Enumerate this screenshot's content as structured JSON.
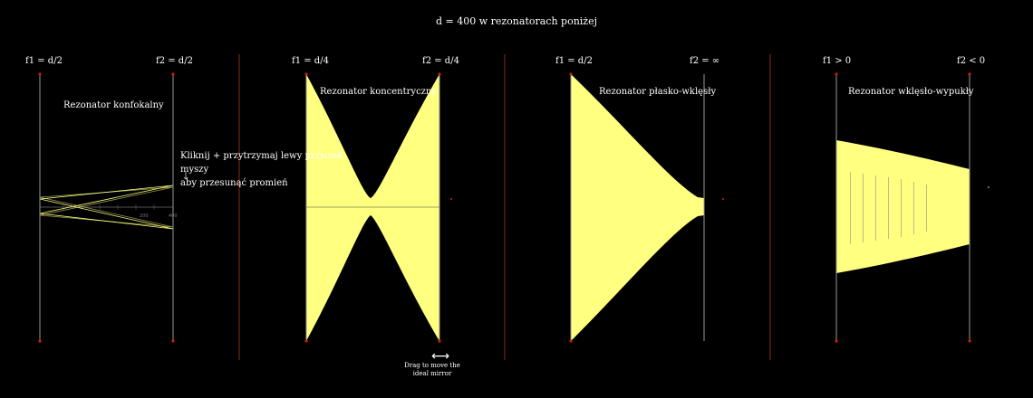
{
  "header": {
    "title": "d = 400 w rezonatorach poniżej"
  },
  "panels": [
    {
      "left_label": "f1 = d/2",
      "right_label": "f2 = d/2",
      "title": "Rezonator konfokalny"
    },
    {
      "left_label": "f1 = d/4",
      "right_label": "f2 = d/4",
      "title": "Rezonator koncentryczny"
    },
    {
      "left_label": "f1 = d/2",
      "right_label": "f2 = ∞",
      "title": "Rezonator płasko-wklęsły"
    },
    {
      "left_label": "f1 > 0",
      "right_label": "f2 < 0",
      "title": "Rezonator wklęsło-wypukły"
    }
  ],
  "hint": {
    "line1": "Kliknij + przytrzymaj lewy przycisk myszy",
    "line2": "aby przesunąć promień"
  },
  "drag_hint": {
    "text": "Drag to move the ideal mirror",
    "icon": "double-arrow-icon"
  },
  "axis_ticks": [
    "0",
    "100",
    "200",
    "300",
    "400"
  ],
  "colors": {
    "beam": "#ffff80",
    "mirror": "#cc2200",
    "axis": "#888888",
    "divider": "#8a2a10"
  }
}
